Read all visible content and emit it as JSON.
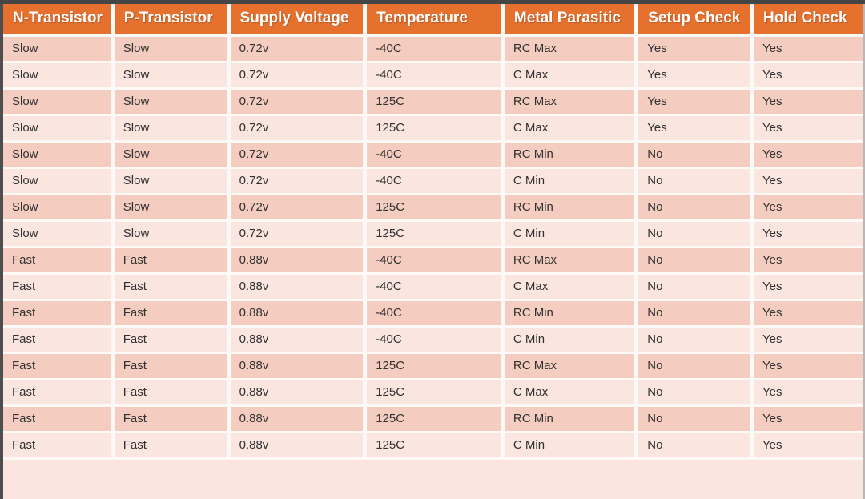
{
  "colors": {
    "header-bg": "#e6702e",
    "row-odd": "#f5cdc0",
    "row-even": "#fbe6df",
    "separator": "#fdf9f7",
    "header-text": "#ffffff",
    "body-text": "#313131",
    "frame-top": "#454545",
    "frame-left": "#4e4e4e",
    "frame-right": "#b8b6b7"
  },
  "chart_data": {
    "type": "table",
    "title": "",
    "columns": [
      "N-Transistor",
      "P-Transistor",
      "Supply Voltage",
      "Temperature",
      "Metal Parasitic",
      "Setup Check",
      "Hold Check"
    ],
    "rows": [
      [
        "Slow",
        "Slow",
        "0.72v",
        "-40C",
        "RC Max",
        "Yes",
        "Yes"
      ],
      [
        "Slow",
        "Slow",
        "0.72v",
        "-40C",
        "C Max",
        "Yes",
        "Yes"
      ],
      [
        "Slow",
        "Slow",
        "0.72v",
        "125C",
        "RC Max",
        "Yes",
        "Yes"
      ],
      [
        "Slow",
        "Slow",
        "0.72v",
        "125C",
        "C Max",
        "Yes",
        "Yes"
      ],
      [
        "Slow",
        "Slow",
        "0.72v",
        "-40C",
        "RC Min",
        "No",
        "Yes"
      ],
      [
        "Slow",
        "Slow",
        "0.72v",
        "-40C",
        "C Min",
        "No",
        "Yes"
      ],
      [
        "Slow",
        "Slow",
        "0.72v",
        "125C",
        "RC Min",
        "No",
        "Yes"
      ],
      [
        "Slow",
        "Slow",
        "0.72v",
        "125C",
        "C Min",
        "No",
        "Yes"
      ],
      [
        "Fast",
        "Fast",
        "0.88v",
        "-40C",
        "RC Max",
        "No",
        "Yes"
      ],
      [
        "Fast",
        "Fast",
        "0.88v",
        "-40C",
        "C Max",
        "No",
        "Yes"
      ],
      [
        "Fast",
        "Fast",
        "0.88v",
        "-40C",
        "RC Min",
        "No",
        "Yes"
      ],
      [
        "Fast",
        "Fast",
        "0.88v",
        "-40C",
        "C Min",
        "No",
        "Yes"
      ],
      [
        "Fast",
        "Fast",
        "0.88v",
        "125C",
        "RC Max",
        "No",
        "Yes"
      ],
      [
        "Fast",
        "Fast",
        "0.88v",
        "125C",
        "C Max",
        "No",
        "Yes"
      ],
      [
        "Fast",
        "Fast",
        "0.88v",
        "125C",
        "RC Min",
        "No",
        "Yes"
      ],
      [
        "Fast",
        "Fast",
        "0.88v",
        "125C",
        "C Min",
        "No",
        "Yes"
      ]
    ]
  }
}
